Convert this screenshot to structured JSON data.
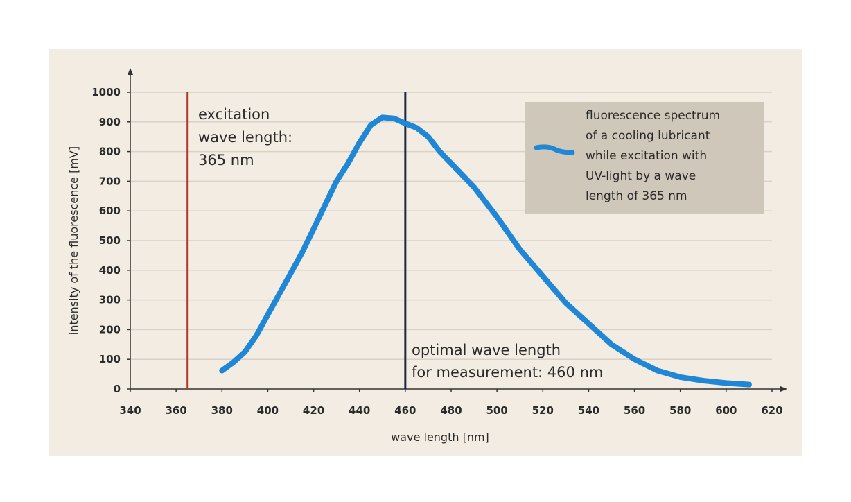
{
  "chart_data": {
    "type": "line",
    "title": "",
    "xlabel": "wave length [nm]",
    "ylabel": "intensity of the fluorescence [mV]",
    "xlim": [
      340,
      620
    ],
    "ylim": [
      0,
      1000
    ],
    "xticks": [
      340,
      360,
      380,
      400,
      420,
      440,
      460,
      480,
      500,
      520,
      540,
      560,
      580,
      600,
      620
    ],
    "yticks": [
      0,
      100,
      200,
      300,
      400,
      500,
      600,
      700,
      800,
      900,
      1000
    ],
    "grid": "horizontal",
    "legend_position": "top-right",
    "series": [
      {
        "name": "fluorescence spectrum of a cooling lubricant while excitation with UV-light by a wave length of 365 nm",
        "legend_lines": [
          "fluorescence spectrum",
          "of a cooling lubricant",
          "while excitation with",
          "UV-light by a wave",
          "length of 365 nm"
        ],
        "color": "#1f87d6",
        "x": [
          380,
          385,
          390,
          395,
          400,
          405,
          410,
          415,
          420,
          425,
          430,
          435,
          440,
          445,
          450,
          455,
          460,
          465,
          470,
          475,
          480,
          490,
          500,
          510,
          520,
          530,
          540,
          550,
          560,
          570,
          580,
          590,
          600,
          610
        ],
        "y": [
          62,
          90,
          125,
          180,
          250,
          320,
          390,
          460,
          540,
          620,
          700,
          760,
          830,
          890,
          915,
          912,
          895,
          880,
          850,
          800,
          760,
          680,
          580,
          470,
          380,
          290,
          220,
          150,
          100,
          62,
          40,
          28,
          20,
          15
        ]
      }
    ],
    "vlines": [
      {
        "x": 365,
        "color": "#b03a2e",
        "label_lines": [
          "excitation",
          "wave length:",
          "365 nm"
        ]
      },
      {
        "x": 460,
        "color": "#1c2a44",
        "label_lines": [
          "optimal wave length",
          "for measurement: 460 nm"
        ]
      }
    ],
    "colors": {
      "background": "#f2ece2",
      "grid": "#d9d1c5",
      "legend_box": "#d0c7bb",
      "axis": "#333333"
    }
  }
}
